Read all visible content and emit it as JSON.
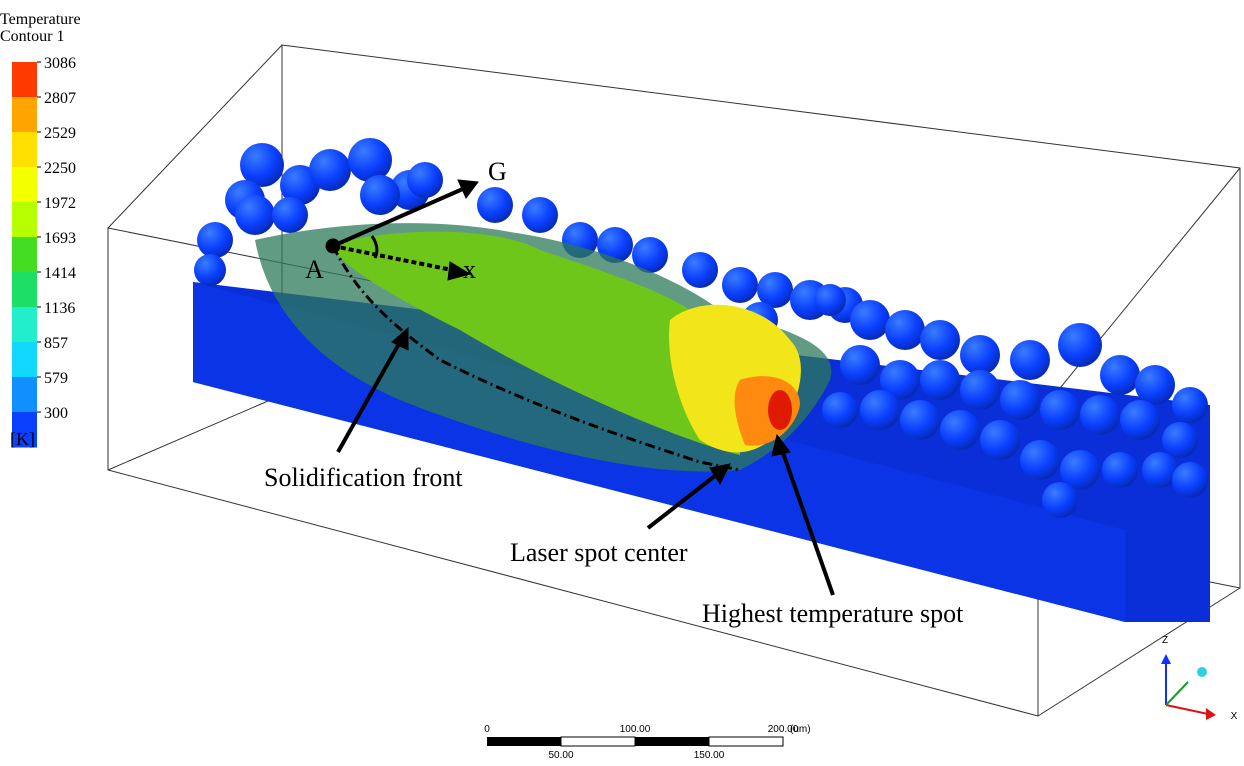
{
  "legend": {
    "title": "Temperature",
    "subtitle": "Contour 1",
    "levels": [
      "3086",
      "2807",
      "2529",
      "2250",
      "1972",
      "1693",
      "1414",
      "1136",
      "857",
      "579",
      "300"
    ],
    "colors": [
      "#ff3a00",
      "#ffa500",
      "#ffe000",
      "#f4ff00",
      "#b6ff00",
      "#44dd22",
      "#1ddf66",
      "#22eecc",
      "#11d8ff",
      "#1090ff",
      "#0a40ff"
    ],
    "unit": "[K]"
  },
  "annotations": {
    "g": "G",
    "a": "A",
    "x": "x",
    "solidification": "Solidification front",
    "laser": "Laser spot center",
    "highest": "Highest temperature spot"
  },
  "scale_bar": {
    "top": [
      "0",
      "100.00",
      "200.00"
    ],
    "unit": "(um)",
    "bottom": [
      "50.00",
      "150.00"
    ]
  },
  "triad": {
    "z": "Z",
    "x": "X"
  }
}
